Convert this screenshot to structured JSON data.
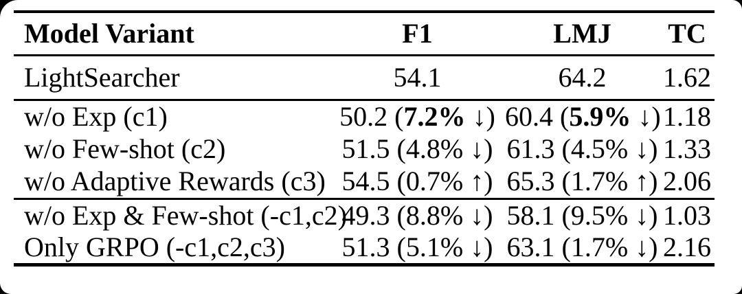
{
  "page": {
    "background_color": "#000000",
    "card_color": "#ffffff",
    "text_color": "#000000"
  },
  "table": {
    "columns": [
      "Model Variant",
      "F1",
      "LMJ",
      "TC"
    ],
    "rows": [
      {
        "model": "LightSearcher",
        "f1": {
          "text": "54.1"
        },
        "lmj": {
          "text": "64.2"
        },
        "tc": "1.62"
      },
      {
        "model": "w/o Exp (c1)",
        "f1": {
          "pre": "50.2 (",
          "pct": "7.2%",
          "post": " ↓)",
          "pct_bold": true
        },
        "lmj": {
          "pre": "60.4 (",
          "pct": "5.9%",
          "post": " ↓)",
          "pct_bold": true
        },
        "tc": "1.18"
      },
      {
        "model": "w/o Few-shot (c2)",
        "f1": {
          "pre": "51.5 (",
          "pct": "4.8%",
          "post": " ↓)",
          "pct_bold": false
        },
        "lmj": {
          "pre": "61.3 (",
          "pct": "4.5%",
          "post": " ↓)",
          "pct_bold": false
        },
        "tc": "1.33"
      },
      {
        "model": "w/o Adaptive Rewards (c3)",
        "f1": {
          "pre": "54.5 (",
          "pct": "0.7%",
          "post": " ↑)",
          "pct_bold": false
        },
        "lmj": {
          "pre": "65.3 (",
          "pct": "1.7%",
          "post": " ↑)",
          "pct_bold": false
        },
        "tc": "2.06"
      },
      {
        "model": "w/o Exp & Few-shot (-c1,c2)",
        "f1": {
          "pre": "49.3 (",
          "pct": "8.8%",
          "post": " ↓)",
          "pct_bold": false
        },
        "lmj": {
          "pre": "58.1 (",
          "pct": "9.5%",
          "post": " ↓)",
          "pct_bold": false
        },
        "tc": "1.03"
      },
      {
        "model": "Only GRPO (-c1,c2,c3)",
        "f1": {
          "pre": "51.3 (",
          "pct": "5.1%",
          "post": " ↓)",
          "pct_bold": false
        },
        "lmj": {
          "pre": "63.1 (",
          "pct": "1.7%",
          "post": " ↓)",
          "pct_bold": false
        },
        "tc": "2.16"
      }
    ]
  }
}
